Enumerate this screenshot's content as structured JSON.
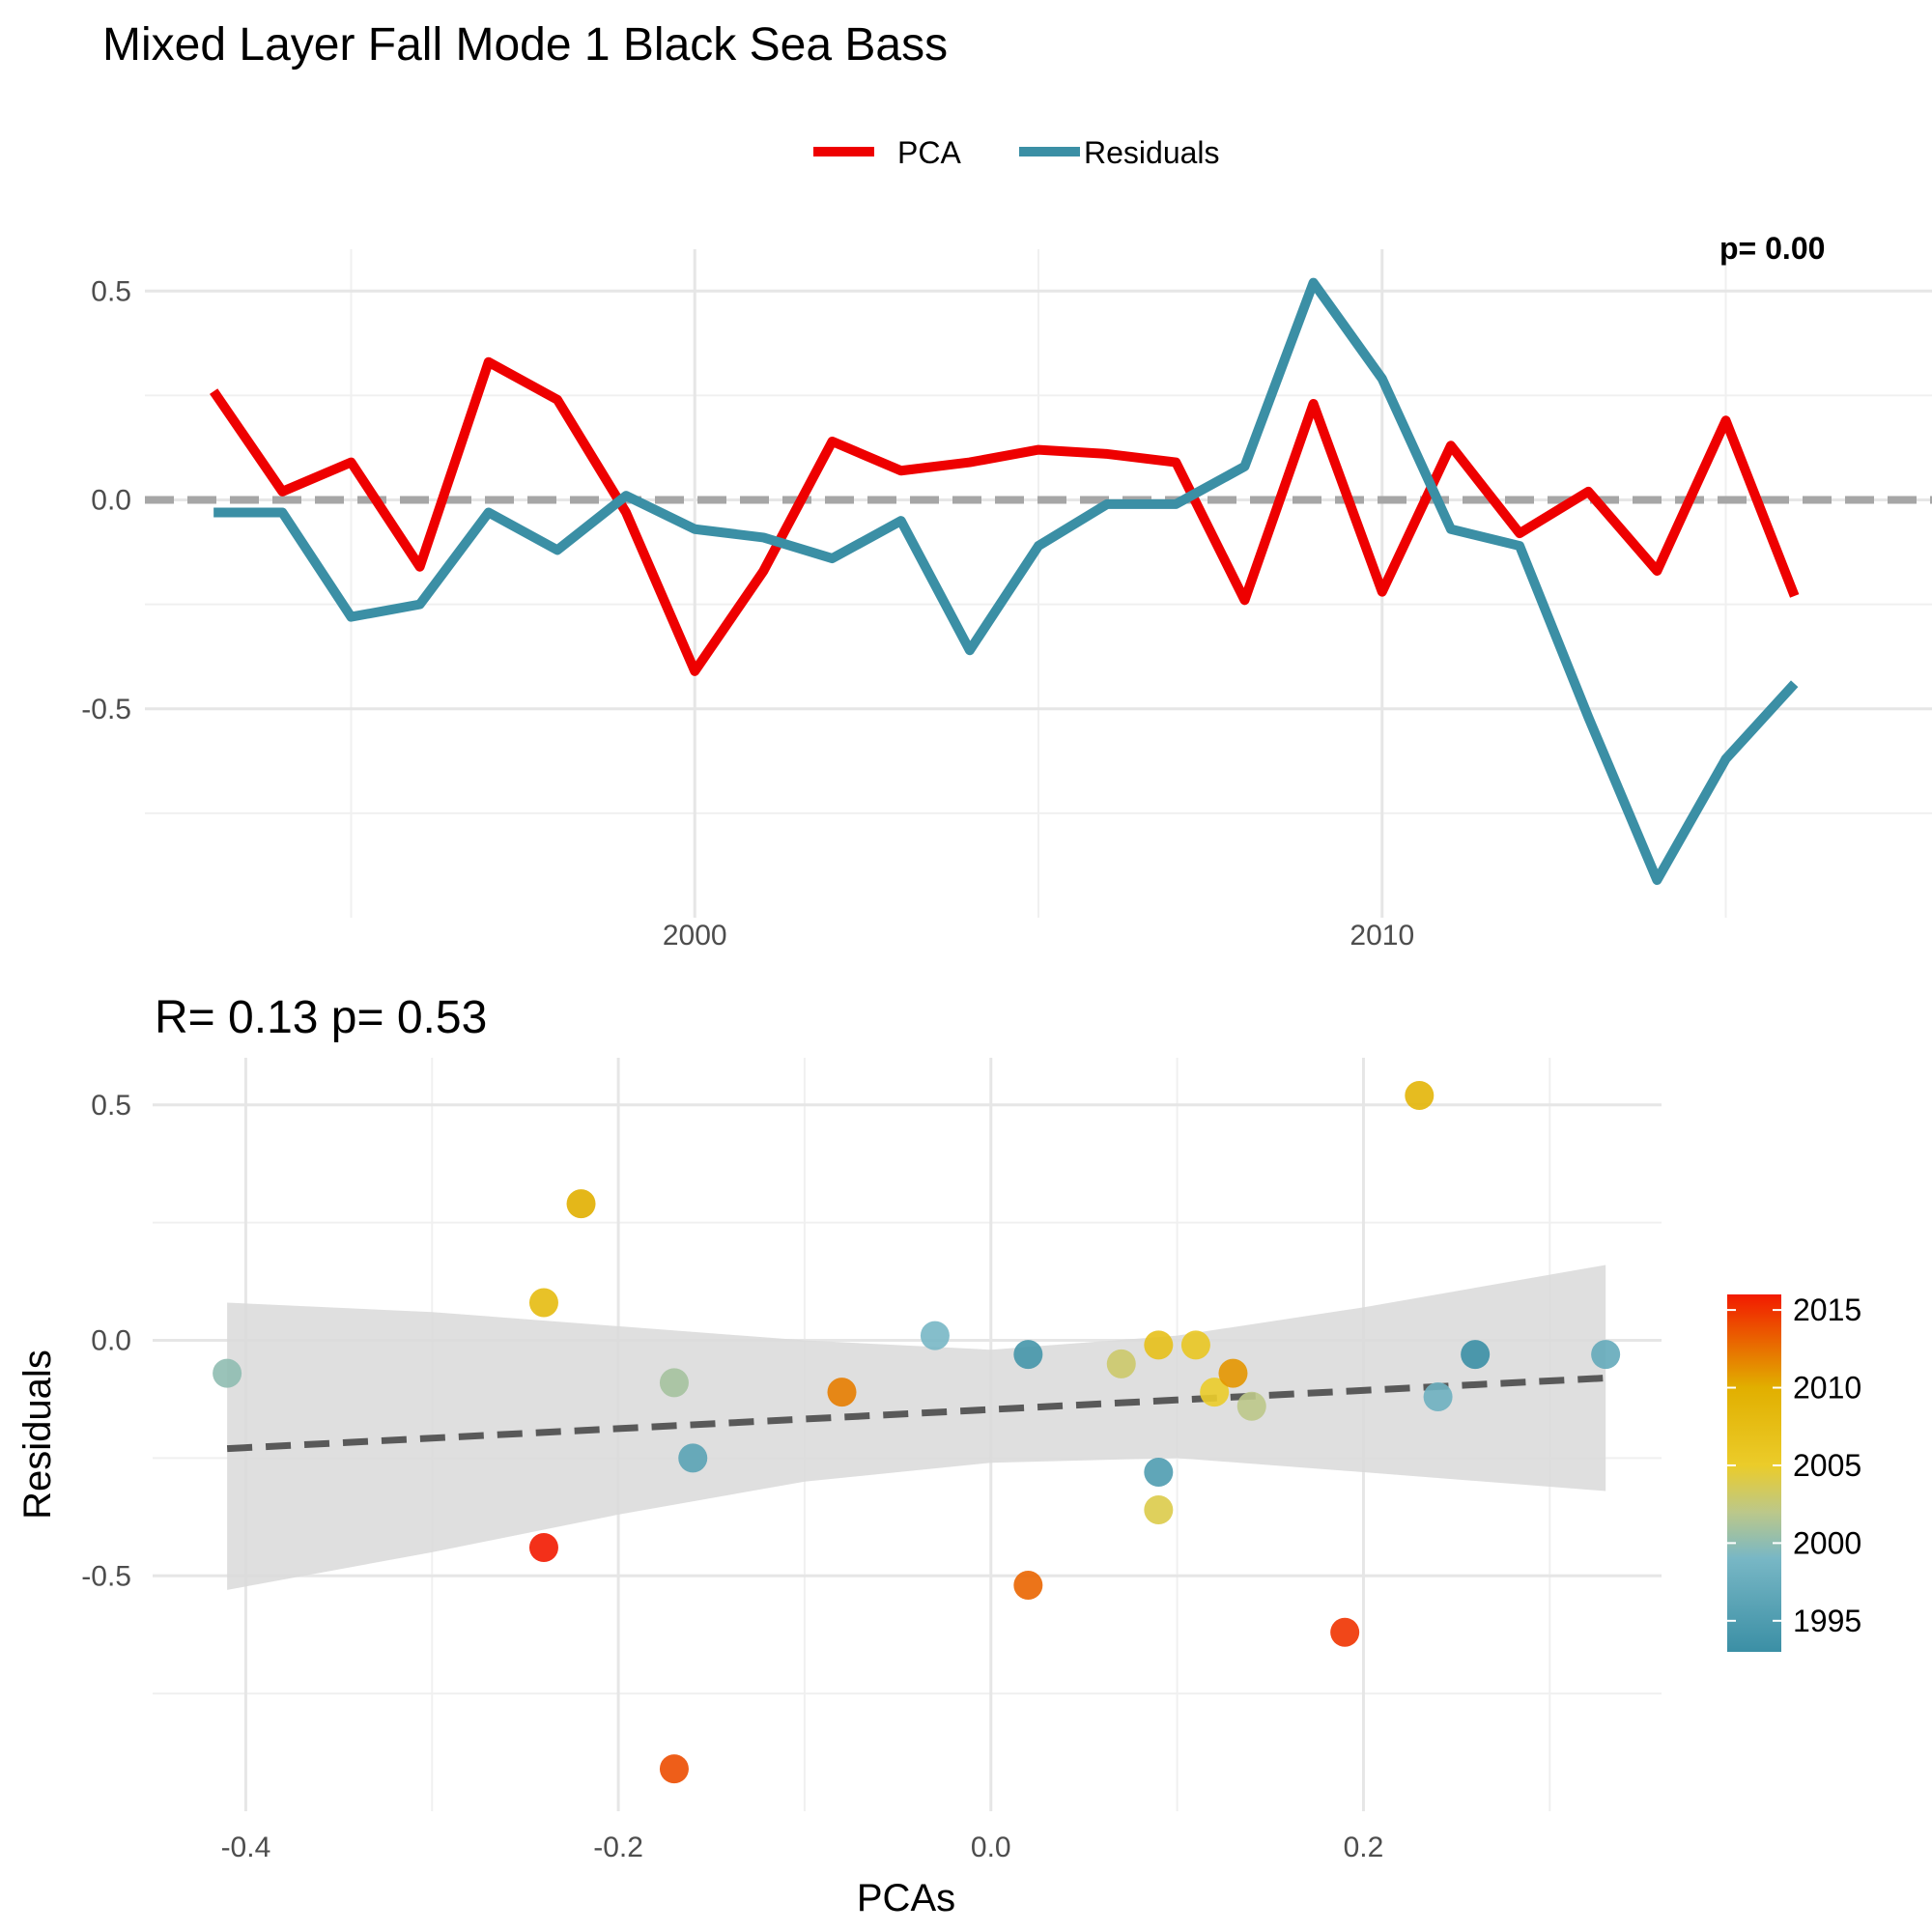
{
  "colors": {
    "pca": "#EE0000",
    "residuals": "#3B8FA5",
    "zero_line": "#A6A6A6",
    "fit_line": "#595959",
    "ribbon": "#D9D9D9",
    "grid": "#E6E6E6",
    "text_title": "#000000",
    "text_tick": "#4D4D4D"
  },
  "chart_data": [
    {
      "type": "line",
      "title": "Mixed Layer Fall Mode 1 Black Sea Bass",
      "xlabel": "",
      "ylabel": "",
      "x": [
        1993,
        1994,
        1995,
        1996,
        1997,
        1998,
        1999,
        2000,
        2001,
        2002,
        2003,
        2004,
        2005,
        2006,
        2007,
        2008,
        2009,
        2010,
        2011,
        2012,
        2013,
        2014,
        2015,
        2016
      ],
      "series": [
        {
          "name": "PCA",
          "color": "#EE0000",
          "values": [
            0.26,
            0.02,
            0.09,
            -0.16,
            0.33,
            0.24,
            -0.03,
            -0.41,
            -0.17,
            0.14,
            0.07,
            0.09,
            0.12,
            0.11,
            0.09,
            -0.24,
            0.23,
            -0.22,
            0.13,
            -0.08,
            0.02,
            -0.17,
            0.19,
            -0.23
          ]
        },
        {
          "name": "Residuals",
          "color": "#3B8FA5",
          "values": [
            -0.03,
            -0.03,
            -0.28,
            -0.25,
            -0.03,
            -0.12,
            0.01,
            -0.07,
            -0.09,
            -0.14,
            -0.05,
            -0.36,
            -0.11,
            -0.01,
            -0.01,
            0.08,
            0.52,
            0.29,
            -0.07,
            -0.11,
            -0.52,
            -0.91,
            -0.62,
            -0.44
          ]
        }
      ],
      "x_ticks": [
        "2000",
        "2010"
      ],
      "y_ticks": [
        "0.5",
        "0.0",
        "-0.5"
      ],
      "xlim": [
        1992,
        2018
      ],
      "ylim": [
        -1.0,
        0.6
      ],
      "reference_line_y": 0,
      "legend_position": "top",
      "grid": true,
      "partial_label": "p= 0.00"
    },
    {
      "type": "scatter",
      "title": "R= 0.13  p= 0.53",
      "xlabel": "PCAs",
      "ylabel": "Residuals",
      "x_ticks": [
        "-0.4",
        "-0.2",
        "0.0",
        "0.2"
      ],
      "y_ticks": [
        "0.5",
        "0.0",
        "-0.5"
      ],
      "xlim": [
        -0.45,
        0.36
      ],
      "ylim": [
        -1.0,
        0.6
      ],
      "grid": true,
      "points": [
        {
          "x": 0.26,
          "y": -0.03,
          "year": 1993
        },
        {
          "x": 0.02,
          "y": -0.03,
          "year": 1994
        },
        {
          "x": 0.09,
          "y": -0.28,
          "year": 1995
        },
        {
          "x": -0.16,
          "y": -0.25,
          "year": 1996
        },
        {
          "x": 0.33,
          "y": -0.03,
          "year": 1997
        },
        {
          "x": 0.24,
          "y": -0.12,
          "year": 1998
        },
        {
          "x": -0.03,
          "y": 0.01,
          "year": 1999
        },
        {
          "x": -0.41,
          "y": -0.07,
          "year": 2000
        },
        {
          "x": -0.17,
          "y": -0.09,
          "year": 2001
        },
        {
          "x": 0.14,
          "y": -0.14,
          "year": 2002
        },
        {
          "x": 0.07,
          "y": -0.05,
          "year": 2003
        },
        {
          "x": 0.09,
          "y": -0.36,
          "year": 2004
        },
        {
          "x": 0.12,
          "y": -0.11,
          "year": 2005
        },
        {
          "x": 0.11,
          "y": -0.01,
          "year": 2006
        },
        {
          "x": 0.09,
          "y": -0.01,
          "year": 2007
        },
        {
          "x": -0.24,
          "y": 0.08,
          "year": 2008
        },
        {
          "x": 0.23,
          "y": 0.52,
          "year": 2009
        },
        {
          "x": -0.22,
          "y": 0.29,
          "year": 2010
        },
        {
          "x": 0.13,
          "y": -0.07,
          "year": 2011
        },
        {
          "x": -0.08,
          "y": -0.11,
          "year": 2012
        },
        {
          "x": 0.02,
          "y": -0.52,
          "year": 2013
        },
        {
          "x": -0.17,
          "y": -0.91,
          "year": 2014
        },
        {
          "x": 0.19,
          "y": -0.62,
          "year": 2015
        },
        {
          "x": -0.24,
          "y": -0.44,
          "year": 2016
        }
      ],
      "fit": {
        "x0": -0.41,
        "y0": -0.23,
        "x1": 0.33,
        "y1": -0.08
      },
      "ribbon": {
        "x": [
          -0.41,
          -0.3,
          -0.2,
          -0.1,
          0.0,
          0.1,
          0.2,
          0.33
        ],
        "upper": [
          0.08,
          0.06,
          0.03,
          0.0,
          -0.02,
          0.01,
          0.07,
          0.16
        ],
        "lower": [
          -0.53,
          -0.45,
          -0.37,
          -0.3,
          -0.26,
          -0.25,
          -0.28,
          -0.32
        ]
      },
      "colorbar": {
        "labels": [
          "2015",
          "2010",
          "2005",
          "2000",
          "1995"
        ],
        "stops": [
          {
            "year": 1993,
            "color": "#3B8FA5"
          },
          {
            "year": 1999,
            "color": "#78B7C5"
          },
          {
            "year": 2002,
            "color": "#BCC88A"
          },
          {
            "year": 2005,
            "color": "#EBCC2A"
          },
          {
            "year": 2010,
            "color": "#E1AF00"
          },
          {
            "year": 2016,
            "color": "#F21A00"
          }
        ]
      }
    }
  ]
}
